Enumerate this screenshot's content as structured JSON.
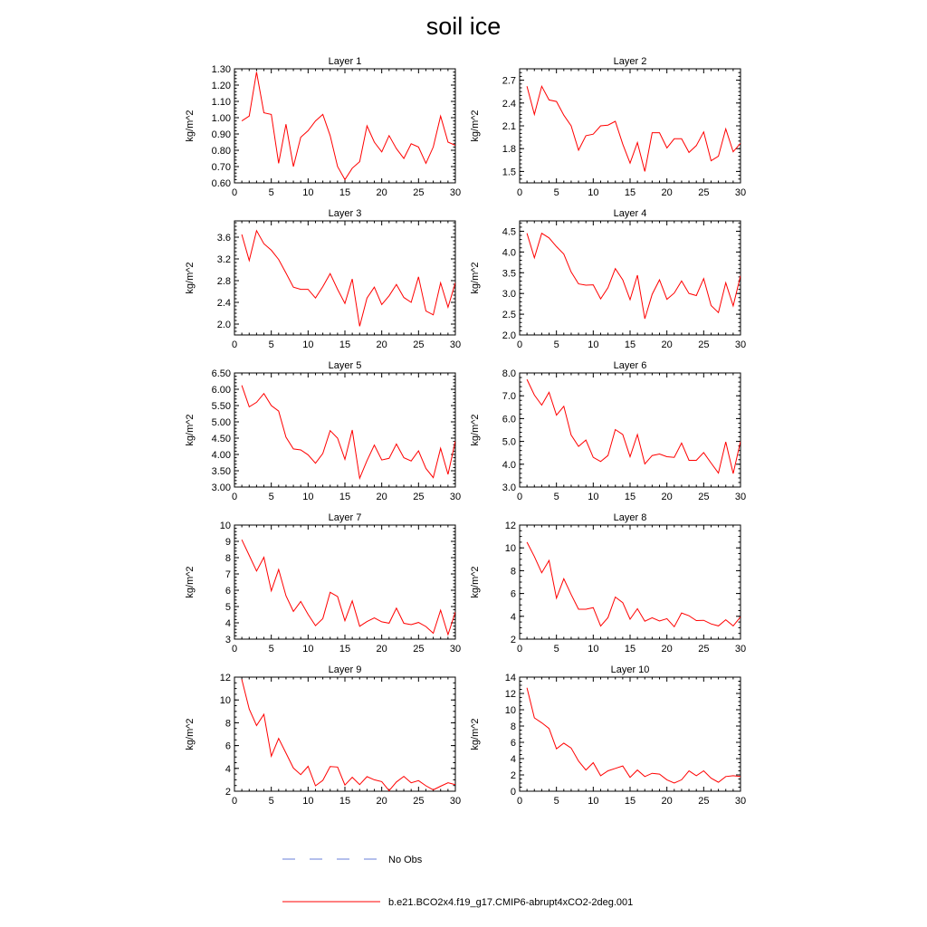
{
  "title": "soil ice",
  "colors": {
    "model": "#ff0000",
    "obs": "#6a7fd8"
  },
  "legend": {
    "obs_label": "No Obs",
    "model_label": "b.e21.BCO2x4.f19_g17.CMIP6-abrupt4xCO2-2deg.001"
  },
  "chart_data": [
    {
      "type": "line",
      "title": "Layer 1",
      "ylabel": "kg/m^2",
      "xlim": [
        0,
        30
      ],
      "ylim": [
        0.6,
        1.3
      ],
      "xticks": [
        "0",
        "5",
        "10",
        "15",
        "20",
        "25",
        "30"
      ],
      "yticks": [
        "0.60",
        "0.70",
        "0.80",
        "0.90",
        "1.00",
        "1.10",
        "1.20",
        "1.30"
      ],
      "series": [
        {
          "name": "b.e21.BCO2x4.f19_g17.CMIP6-abrupt4xCO2-2deg.001",
          "x": [
            1,
            2,
            3,
            4,
            5,
            6,
            7,
            8,
            9,
            10,
            11,
            12,
            13,
            14,
            15,
            16,
            17,
            18,
            19,
            20,
            21,
            22,
            23,
            24,
            25,
            26,
            27,
            28,
            29,
            30
          ],
          "values": [
            0.98,
            1.01,
            1.28,
            1.03,
            1.02,
            0.72,
            0.96,
            0.7,
            0.88,
            0.92,
            0.98,
            1.02,
            0.89,
            0.7,
            0.62,
            0.69,
            0.73,
            0.95,
            0.85,
            0.79,
            0.89,
            0.81,
            0.75,
            0.84,
            0.82,
            0.72,
            0.82,
            1.01,
            0.85,
            0.83
          ]
        }
      ]
    },
    {
      "type": "line",
      "title": "Layer 2",
      "ylabel": "kg/m^2",
      "xlim": [
        0,
        30
      ],
      "ylim": [
        1.35,
        2.85
      ],
      "xticks": [
        "0",
        "5",
        "10",
        "15",
        "20",
        "25",
        "30"
      ],
      "yticks": [
        "1.5",
        "1.8",
        "2.1",
        "2.4",
        "2.7"
      ],
      "series": [
        {
          "name": "b.e21.BCO2x4.f19_g17.CMIP6-abrupt4xCO2-2deg.001",
          "x": [
            1,
            2,
            3,
            4,
            5,
            6,
            7,
            8,
            9,
            10,
            11,
            12,
            13,
            14,
            15,
            16,
            17,
            18,
            19,
            20,
            21,
            22,
            23,
            24,
            25,
            26,
            27,
            28,
            29,
            30
          ],
          "values": [
            2.62,
            2.25,
            2.62,
            2.44,
            2.42,
            2.24,
            2.1,
            1.78,
            1.97,
            1.99,
            2.1,
            2.11,
            2.16,
            1.86,
            1.61,
            1.88,
            1.5,
            2.01,
            2.01,
            1.81,
            1.93,
            1.93,
            1.75,
            1.84,
            2.02,
            1.64,
            1.7,
            2.06,
            1.76,
            1.87
          ]
        }
      ]
    },
    {
      "type": "line",
      "title": "Layer 3",
      "ylabel": "kg/m^2",
      "xlim": [
        0,
        30
      ],
      "ylim": [
        1.8,
        3.9
      ],
      "xticks": [
        "0",
        "5",
        "10",
        "15",
        "20",
        "25",
        "30"
      ],
      "yticks": [
        "2.0",
        "2.4",
        "2.8",
        "3.2",
        "3.6"
      ],
      "series": [
        {
          "name": "b.e21.BCO2x4.f19_g17.CMIP6-abrupt4xCO2-2deg.001",
          "x": [
            1,
            2,
            3,
            4,
            5,
            6,
            7,
            8,
            9,
            10,
            11,
            12,
            13,
            14,
            15,
            16,
            17,
            18,
            19,
            20,
            21,
            22,
            23,
            24,
            25,
            26,
            27,
            28,
            29,
            30
          ],
          "values": [
            3.65,
            3.17,
            3.72,
            3.48,
            3.36,
            3.19,
            2.94,
            2.68,
            2.64,
            2.64,
            2.48,
            2.69,
            2.93,
            2.64,
            2.38,
            2.83,
            1.96,
            2.48,
            2.68,
            2.36,
            2.52,
            2.73,
            2.49,
            2.4,
            2.87,
            2.24,
            2.17,
            2.76,
            2.31,
            2.76
          ]
        }
      ]
    },
    {
      "type": "line",
      "title": "Layer 4",
      "ylabel": "kg/m^2",
      "xlim": [
        0,
        30
      ],
      "ylim": [
        2.0,
        4.75
      ],
      "xticks": [
        "0",
        "5",
        "10",
        "15",
        "20",
        "25",
        "30"
      ],
      "yticks": [
        "2.0",
        "2.5",
        "3.0",
        "3.5",
        "4.0",
        "4.5"
      ],
      "series": [
        {
          "name": "b.e21.BCO2x4.f19_g17.CMIP6-abrupt4xCO2-2deg.001",
          "x": [
            1,
            2,
            3,
            4,
            5,
            6,
            7,
            8,
            9,
            10,
            11,
            12,
            13,
            14,
            15,
            16,
            17,
            18,
            19,
            20,
            21,
            22,
            23,
            24,
            25,
            26,
            27,
            28,
            29,
            30
          ],
          "values": [
            4.45,
            3.86,
            4.45,
            4.34,
            4.13,
            3.95,
            3.52,
            3.23,
            3.2,
            3.21,
            2.87,
            3.14,
            3.6,
            3.33,
            2.85,
            3.44,
            2.39,
            2.98,
            3.33,
            2.86,
            3.01,
            3.3,
            3.0,
            2.95,
            3.36,
            2.71,
            2.54,
            3.26,
            2.7,
            3.43
          ]
        }
      ]
    },
    {
      "type": "line",
      "title": "Layer 5",
      "ylabel": "kg/m^2",
      "xlim": [
        0,
        30
      ],
      "ylim": [
        3.0,
        6.5
      ],
      "xticks": [
        "0",
        "5",
        "10",
        "15",
        "20",
        "25",
        "30"
      ],
      "yticks": [
        "3.00",
        "3.50",
        "4.00",
        "4.50",
        "5.00",
        "5.50",
        "6.00",
        "6.50"
      ],
      "series": [
        {
          "name": "b.e21.BCO2x4.f19_g17.CMIP6-abrupt4xCO2-2deg.001",
          "x": [
            1,
            2,
            3,
            4,
            5,
            6,
            7,
            8,
            9,
            10,
            11,
            12,
            13,
            14,
            15,
            16,
            17,
            18,
            19,
            20,
            21,
            22,
            23,
            24,
            25,
            26,
            27,
            28,
            29,
            30
          ],
          "values": [
            6.12,
            5.46,
            5.6,
            5.87,
            5.5,
            5.33,
            4.53,
            4.17,
            4.14,
            3.99,
            3.73,
            4.03,
            4.73,
            4.5,
            3.85,
            4.75,
            3.27,
            3.81,
            4.29,
            3.83,
            3.88,
            4.32,
            3.9,
            3.8,
            4.11,
            3.57,
            3.29,
            4.19,
            3.39,
            4.41
          ]
        }
      ]
    },
    {
      "type": "line",
      "title": "Layer 6",
      "ylabel": "kg/m^2",
      "xlim": [
        0,
        30
      ],
      "ylim": [
        3.0,
        8.0
      ],
      "xticks": [
        "0",
        "5",
        "10",
        "15",
        "20",
        "25",
        "30"
      ],
      "yticks": [
        "3.0",
        "4.0",
        "5.0",
        "6.0",
        "7.0",
        "8.0"
      ],
      "series": [
        {
          "name": "b.e21.BCO2x4.f19_g17.CMIP6-abrupt4xCO2-2deg.001",
          "x": [
            1,
            2,
            3,
            4,
            5,
            6,
            7,
            8,
            9,
            10,
            11,
            12,
            13,
            14,
            15,
            16,
            17,
            18,
            19,
            20,
            21,
            22,
            23,
            24,
            25,
            26,
            27,
            28,
            29,
            30
          ],
          "values": [
            7.72,
            7.03,
            6.59,
            7.15,
            6.15,
            6.54,
            5.28,
            4.78,
            5.06,
            4.3,
            4.12,
            4.38,
            5.52,
            5.3,
            4.33,
            5.3,
            4.01,
            4.38,
            4.45,
            4.33,
            4.3,
            4.93,
            4.17,
            4.17,
            4.51,
            4.05,
            3.61,
            4.98,
            3.59,
            5.0
          ]
        }
      ]
    },
    {
      "type": "line",
      "title": "Layer 7",
      "ylabel": "kg/m^2",
      "xlim": [
        0,
        30
      ],
      "ylim": [
        3,
        10
      ],
      "xticks": [
        "0",
        "5",
        "10",
        "15",
        "20",
        "25",
        "30"
      ],
      "yticks": [
        "3",
        "4",
        "5",
        "6",
        "7",
        "8",
        "9",
        "10"
      ],
      "series": [
        {
          "name": "b.e21.BCO2x4.f19_g17.CMIP6-abrupt4xCO2-2deg.001",
          "x": [
            1,
            2,
            3,
            4,
            5,
            6,
            7,
            8,
            9,
            10,
            11,
            12,
            13,
            14,
            15,
            16,
            17,
            18,
            19,
            20,
            21,
            22,
            23,
            24,
            25,
            26,
            27,
            28,
            29,
            30
          ],
          "values": [
            9.1,
            8.14,
            7.18,
            8.02,
            5.96,
            7.27,
            5.66,
            4.7,
            5.31,
            4.52,
            3.83,
            4.26,
            5.87,
            5.61,
            4.13,
            5.35,
            3.79,
            4.08,
            4.3,
            4.06,
            3.98,
            4.9,
            3.97,
            3.89,
            4.02,
            3.77,
            3.36,
            4.78,
            3.28,
            4.66
          ]
        }
      ]
    },
    {
      "type": "line",
      "title": "Layer 8",
      "ylabel": "kg/m^2",
      "xlim": [
        0,
        30
      ],
      "ylim": [
        2,
        12
      ],
      "xticks": [
        "0",
        "5",
        "10",
        "15",
        "20",
        "25",
        "30"
      ],
      "yticks": [
        "2",
        "4",
        "6",
        "8",
        "10",
        "12"
      ],
      "series": [
        {
          "name": "b.e21.BCO2x4.f19_g17.CMIP6-abrupt4xCO2-2deg.001",
          "x": [
            1,
            2,
            3,
            4,
            5,
            6,
            7,
            8,
            9,
            10,
            11,
            12,
            13,
            14,
            15,
            16,
            17,
            18,
            19,
            20,
            21,
            22,
            23,
            24,
            25,
            26,
            27,
            28,
            29,
            30
          ],
          "values": [
            10.5,
            9.24,
            7.82,
            8.9,
            5.59,
            7.29,
            5.91,
            4.62,
            4.62,
            4.76,
            3.14,
            3.89,
            5.69,
            5.2,
            3.75,
            4.67,
            3.57,
            3.87,
            3.59,
            3.79,
            3.09,
            4.29,
            4.05,
            3.63,
            3.65,
            3.33,
            3.16,
            3.7,
            3.16,
            3.95
          ]
        }
      ]
    },
    {
      "type": "line",
      "title": "Layer 9",
      "ylabel": "kg/m^2",
      "xlim": [
        0,
        30
      ],
      "ylim": [
        2,
        12
      ],
      "xticks": [
        "0",
        "5",
        "10",
        "15",
        "20",
        "25",
        "30"
      ],
      "yticks": [
        "2",
        "4",
        "6",
        "8",
        "10",
        "12"
      ],
      "series": [
        {
          "name": "b.e21.BCO2x4.f19_g17.CMIP6-abrupt4xCO2-2deg.001",
          "x": [
            1,
            2,
            3,
            4,
            5,
            6,
            7,
            8,
            9,
            10,
            11,
            12,
            13,
            14,
            15,
            16,
            17,
            18,
            19,
            20,
            21,
            22,
            23,
            24,
            25,
            26,
            27,
            28,
            29,
            30
          ],
          "values": [
            11.8,
            9.21,
            7.76,
            8.74,
            5.07,
            6.63,
            5.34,
            4.03,
            3.45,
            4.18,
            2.48,
            2.95,
            4.16,
            4.12,
            2.54,
            3.22,
            2.58,
            3.28,
            3.0,
            2.84,
            2.05,
            2.81,
            3.3,
            2.74,
            2.93,
            2.48,
            2.12,
            2.44,
            2.74,
            2.57
          ]
        }
      ]
    },
    {
      "type": "line",
      "title": "Layer 10",
      "ylabel": "kg/m^2",
      "xlim": [
        0,
        30
      ],
      "ylim": [
        0,
        14
      ],
      "xticks": [
        "0",
        "5",
        "10",
        "15",
        "20",
        "25",
        "30"
      ],
      "yticks": [
        "0",
        "2",
        "4",
        "6",
        "8",
        "10",
        "12",
        "14"
      ],
      "series": [
        {
          "name": "b.e21.BCO2x4.f19_g17.CMIP6-abrupt4xCO2-2deg.001",
          "x": [
            1,
            2,
            3,
            4,
            5,
            6,
            7,
            8,
            9,
            10,
            11,
            12,
            13,
            14,
            15,
            16,
            17,
            18,
            19,
            20,
            21,
            22,
            23,
            24,
            25,
            26,
            27,
            28,
            29,
            30
          ],
          "values": [
            12.7,
            9.0,
            8.4,
            7.7,
            5.2,
            5.9,
            5.3,
            3.7,
            2.6,
            3.5,
            1.9,
            2.5,
            2.8,
            3.1,
            1.7,
            2.6,
            1.8,
            2.2,
            2.1,
            1.4,
            1.0,
            1.4,
            2.5,
            1.9,
            2.5,
            1.6,
            1.1,
            1.8,
            1.9,
            1.8
          ]
        }
      ]
    }
  ]
}
